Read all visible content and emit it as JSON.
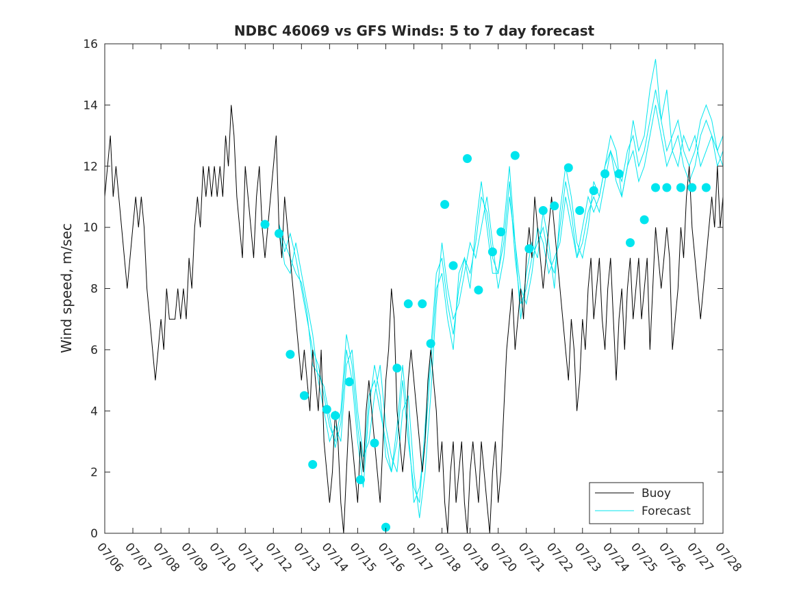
{
  "chart_data": {
    "type": "line",
    "title": "NDBC 46069 vs GFS Winds: 5 to 7 day forecast",
    "xlabel": "",
    "ylabel": "Wind speed, m/sec",
    "xlim": [
      0,
      22
    ],
    "ylim": [
      0,
      16
    ],
    "x_tick_labels": [
      "07/06",
      "07/07",
      "07/08",
      "07/09",
      "07/10",
      "07/11",
      "07/12",
      "07/13",
      "07/14",
      "07/15",
      "07/16",
      "07/17",
      "07/18",
      "07/19",
      "07/20",
      "07/21",
      "07/22",
      "07/23",
      "07/24",
      "07/25",
      "07/26",
      "07/27",
      "07/28"
    ],
    "y_ticks": [
      0,
      2,
      4,
      6,
      8,
      10,
      12,
      14,
      16
    ],
    "grid": false,
    "legend_position": "bottom-right",
    "colors": {
      "buoy": "#000000",
      "forecast": "#00e5ee",
      "axis": "#262626"
    },
    "series": [
      {
        "name": "Buoy",
        "x": [
          0,
          0.1,
          0.2,
          0.3,
          0.4,
          0.5,
          0.6,
          0.7,
          0.8,
          0.9,
          1.0,
          1.1,
          1.2,
          1.3,
          1.4,
          1.5,
          1.6,
          1.7,
          1.8,
          1.9,
          2.0,
          2.1,
          2.2,
          2.3,
          2.4,
          2.5,
          2.6,
          2.7,
          2.8,
          2.9,
          3.0,
          3.1,
          3.2,
          3.3,
          3.4,
          3.5,
          3.6,
          3.7,
          3.8,
          3.9,
          4.0,
          4.1,
          4.2,
          4.3,
          4.4,
          4.5,
          4.6,
          4.7,
          4.8,
          4.9,
          5.0,
          5.1,
          5.2,
          5.3,
          5.4,
          5.5,
          5.6,
          5.7,
          5.8,
          5.9,
          6.0,
          6.1,
          6.2,
          6.3,
          6.4,
          6.5,
          6.6,
          6.7,
          6.8,
          6.9,
          7.0,
          7.1,
          7.2,
          7.3,
          7.4,
          7.5,
          7.6,
          7.7,
          7.8,
          7.9,
          8.0,
          8.1,
          8.2,
          8.3,
          8.4,
          8.5,
          8.6,
          8.7,
          8.8,
          8.9,
          9.0,
          9.1,
          9.2,
          9.3,
          9.4,
          9.5,
          9.6,
          9.7,
          9.8,
          9.9,
          10.0,
          10.1,
          10.2,
          10.3,
          10.4,
          10.5,
          10.6,
          10.7,
          10.8,
          10.9,
          11.0,
          11.1,
          11.2,
          11.3,
          11.4,
          11.5,
          11.6,
          11.7,
          11.8,
          11.9,
          12.0,
          12.1,
          12.2,
          12.3,
          12.4,
          12.5,
          12.6,
          12.7,
          12.8,
          12.9,
          13.0,
          13.1,
          13.2,
          13.3,
          13.4,
          13.5,
          13.6,
          13.7,
          13.8,
          13.9,
          14.0,
          14.1,
          14.2,
          14.3,
          14.4,
          14.5,
          14.6,
          14.7,
          14.8,
          14.9,
          15.0,
          15.1,
          15.2,
          15.3,
          15.4,
          15.5,
          15.6,
          15.7,
          15.8,
          15.9,
          16.0,
          16.1,
          16.2,
          16.3,
          16.4,
          16.5,
          16.6,
          16.7,
          16.8,
          16.9,
          17.0,
          17.1,
          17.2,
          17.3,
          17.4,
          17.5,
          17.6,
          17.7,
          17.8,
          17.9,
          18.0,
          18.1,
          18.2,
          18.3,
          18.4,
          18.5,
          18.6,
          18.7,
          18.8,
          18.9,
          19.0,
          19.1,
          19.2,
          19.3,
          19.4,
          19.5,
          19.6,
          19.7,
          19.8,
          19.9,
          20.0,
          20.1,
          20.2,
          20.3,
          20.4,
          20.5,
          20.6,
          20.7,
          20.8,
          20.9,
          21.0,
          21.1,
          21.2,
          21.3,
          21.4,
          21.5,
          21.6,
          21.7,
          21.8,
          21.9,
          22.0
        ],
        "values": [
          11,
          12,
          13,
          11,
          12,
          11,
          10,
          9,
          8,
          9,
          10,
          11,
          10,
          11,
          10,
          8,
          7,
          6,
          5,
          6,
          7,
          6,
          8,
          7,
          7,
          7,
          8,
          7,
          8,
          7,
          9,
          8,
          10,
          11,
          10,
          12,
          11,
          12,
          11,
          12,
          11,
          12,
          11,
          13,
          12,
          14,
          13,
          11,
          10,
          9,
          12,
          11,
          10,
          9,
          11,
          12,
          10,
          9,
          10,
          11,
          12,
          13,
          10,
          9,
          11,
          10,
          9,
          8,
          7,
          6,
          5,
          6,
          5,
          4,
          6,
          5,
          4,
          6,
          3,
          2,
          1,
          2,
          4,
          3,
          1,
          0,
          2,
          4,
          3,
          2,
          1,
          3,
          2,
          4,
          5,
          4,
          3,
          2,
          1,
          3,
          5,
          6,
          8,
          7,
          4,
          3,
          2,
          3,
          5,
          6,
          5,
          4,
          3,
          2,
          3,
          5,
          6,
          5,
          4,
          2,
          3,
          1,
          0,
          2,
          3,
          1,
          2,
          3,
          1,
          0,
          2,
          3,
          2,
          1,
          3,
          2,
          1,
          0,
          2,
          3,
          1,
          2,
          4,
          6,
          7,
          8,
          6,
          7,
          8,
          7,
          9,
          10,
          9,
          11,
          10,
          9,
          8,
          9,
          10,
          11,
          10,
          9,
          8,
          7,
          6,
          5,
          7,
          6,
          4,
          5,
          7,
          6,
          8,
          9,
          7,
          8,
          9,
          7,
          6,
          8,
          9,
          7,
          5,
          7,
          8,
          6,
          8,
          9,
          7,
          8,
          9,
          7,
          8,
          9,
          6,
          8,
          10,
          9,
          8,
          9,
          10,
          9,
          6,
          7,
          8,
          10,
          9,
          11,
          12,
          10,
          9,
          8,
          7,
          8,
          9,
          10,
          11,
          10,
          12,
          10,
          11
        ]
      },
      {
        "name": "Forecast",
        "x": [
          6.2,
          6.4,
          6.6,
          6.8,
          7.0,
          7.2,
          7.4,
          7.6,
          7.8,
          8.0,
          8.2,
          8.4,
          8.6,
          8.8,
          9.0,
          9.2,
          9.4,
          9.6,
          9.8,
          10.0,
          10.2,
          10.4,
          10.6,
          10.8,
          11.0,
          11.2,
          11.4,
          11.6,
          11.8,
          12.0,
          12.2,
          12.4,
          12.6,
          12.8,
          13.0,
          13.2,
          13.4,
          13.6,
          13.8,
          14.0,
          14.2,
          14.4,
          14.6,
          14.8,
          15.0,
          15.2,
          15.4,
          15.6,
          15.8,
          16.0,
          16.2,
          16.4,
          16.6,
          16.8,
          17.0,
          17.2,
          17.4,
          17.6,
          17.8,
          18.0,
          18.2,
          18.4,
          18.6,
          18.8,
          19.0,
          19.2,
          19.4,
          19.6,
          19.8,
          20.0,
          20.2,
          20.4,
          20.6,
          20.8,
          21.0,
          21.2,
          21.4,
          21.6,
          21.8,
          22.0
        ],
        "values": [
          10.1,
          9.2,
          9.8,
          9.0,
          8.0,
          7.0,
          6.0,
          5.5,
          4.5,
          3.5,
          3.0,
          4.0,
          6.5,
          5.5,
          3.5,
          2.0,
          4.5,
          5.0,
          4.0,
          3.0,
          2.0,
          3.0,
          5.0,
          3.0,
          1.5,
          1.0,
          3.5,
          6.0,
          8.5,
          9.0,
          7.5,
          6.5,
          8.0,
          9.0,
          8.5,
          9.5,
          11.0,
          10.5,
          9.0,
          8.5,
          9.5,
          11.5,
          9.0,
          7.5,
          8.0,
          9.0,
          9.5,
          10.0,
          9.0,
          8.5,
          10.0,
          11.5,
          10.5,
          9.0,
          9.5,
          10.5,
          11.0,
          10.5,
          11.5,
          12.5,
          12.0,
          11.5,
          12.5,
          13.0,
          12.0,
          12.5,
          13.5,
          14.5,
          13.5,
          12.5,
          13.0,
          13.5,
          12.5,
          12.0,
          12.5,
          13.5,
          14.0,
          13.5,
          12.5,
          13.0
        ]
      },
      {
        "name": "",
        "x": [
          6.2,
          6.4,
          6.6,
          6.8,
          7.0,
          7.2,
          7.4,
          7.6,
          7.8,
          8.0,
          8.2,
          8.4,
          8.6,
          8.8,
          9.0,
          9.2,
          9.4,
          9.6,
          9.8,
          10.0,
          10.2,
          10.4,
          10.6,
          10.8,
          11.0,
          11.2,
          11.4,
          11.6,
          11.8,
          12.0,
          12.2,
          12.4,
          12.6,
          12.8,
          13.0,
          13.2,
          13.4,
          13.6,
          13.8,
          14.0,
          14.2,
          14.4,
          14.6,
          14.8,
          15.0,
          15.2,
          15.4,
          15.6,
          15.8,
          16.0,
          16.2,
          16.4,
          16.6,
          16.8,
          17.0,
          17.2,
          17.4,
          17.6,
          17.8,
          18.0,
          18.2,
          18.4,
          18.6,
          18.8,
          19.0,
          19.2,
          19.4,
          19.6,
          19.8,
          20.0,
          20.2,
          20.4,
          20.6,
          20.8,
          21.0,
          21.2,
          21.4,
          21.6,
          21.8,
          22.0
        ],
        "values": [
          10.0,
          8.8,
          8.5,
          9.5,
          8.5,
          7.5,
          6.5,
          5.0,
          4.0,
          3.0,
          3.5,
          3.0,
          5.5,
          6.0,
          4.0,
          2.5,
          3.0,
          4.5,
          5.5,
          3.5,
          2.5,
          2.0,
          4.0,
          4.5,
          2.0,
          0.5,
          2.0,
          4.5,
          7.5,
          9.5,
          8.0,
          7.0,
          7.5,
          8.5,
          9.5,
          9.0,
          10.0,
          11.0,
          9.5,
          8.0,
          9.0,
          11.0,
          9.5,
          8.0,
          7.5,
          8.5,
          10.0,
          9.5,
          8.5,
          9.0,
          9.5,
          11.0,
          10.0,
          9.0,
          10.0,
          11.0,
          10.5,
          11.0,
          12.0,
          12.5,
          11.5,
          11.0,
          12.0,
          12.5,
          11.5,
          12.0,
          13.0,
          14.0,
          13.0,
          12.0,
          12.5,
          13.0,
          12.0,
          11.5,
          12.0,
          13.0,
          13.5,
          13.0,
          12.0,
          12.5
        ]
      },
      {
        "name": "",
        "x": [
          6.2,
          6.4,
          6.6,
          6.8,
          7.0,
          7.2,
          7.4,
          7.6,
          7.8,
          8.0,
          8.2,
          8.4,
          8.6,
          8.8,
          9.0,
          9.2,
          9.4,
          9.6,
          9.8,
          10.0,
          10.2,
          10.4,
          10.6,
          10.8,
          11.0,
          11.2,
          11.4,
          11.6,
          11.8,
          12.0,
          12.2,
          12.4,
          12.6,
          12.8,
          13.0,
          13.2,
          13.4,
          13.6,
          13.8,
          14.0,
          14.2,
          14.4,
          14.6,
          14.8,
          15.0,
          15.2,
          15.4,
          15.6,
          15.8,
          16.0,
          16.2,
          16.4,
          16.6,
          16.8,
          17.0,
          17.2,
          17.4,
          17.6,
          17.8,
          18.0,
          18.2,
          18.4,
          18.6,
          18.8,
          19.0,
          19.2,
          19.4,
          19.6,
          19.8,
          20.0,
          20.2,
          20.4,
          20.6,
          20.8,
          21.0,
          21.2,
          21.4,
          21.6,
          21.8,
          22.0
        ],
        "values": [
          10.1,
          9.5,
          9.0,
          8.5,
          8.2,
          7.2,
          5.5,
          5.2,
          4.8,
          3.8,
          2.8,
          3.6,
          6.0,
          5.0,
          3.0,
          1.5,
          4.0,
          5.5,
          4.5,
          2.5,
          2.0,
          3.5,
          5.5,
          3.5,
          1.0,
          1.5,
          3.0,
          5.5,
          8.0,
          8.5,
          7.0,
          6.0,
          8.5,
          9.0,
          8.0,
          10.0,
          11.5,
          10.0,
          8.5,
          8.5,
          10.0,
          12.0,
          9.5,
          7.0,
          8.5,
          9.5,
          9.0,
          10.5,
          9.5,
          8.0,
          10.5,
          12.0,
          11.0,
          9.5,
          9.0,
          10.0,
          11.5,
          11.0,
          12.0,
          13.0,
          12.5,
          11.0,
          12.0,
          13.5,
          12.5,
          13.0,
          14.5,
          15.5,
          13.5,
          14.5,
          12.5,
          12.0,
          13.0,
          12.5,
          13.0,
          12.0,
          12.5,
          13.0,
          12.5,
          12.0
        ]
      }
    ],
    "markers": {
      "series": "Forecast",
      "x": [
        5.7,
        6.2,
        6.6,
        7.1,
        7.4,
        7.9,
        8.2,
        8.7,
        9.1,
        9.6,
        10.0,
        10.4,
        10.8,
        11.3,
        11.6,
        12.1,
        12.4,
        12.9,
        13.3,
        13.8,
        14.1,
        14.6,
        15.1,
        15.6,
        16.0,
        16.5,
        16.9,
        17.4,
        17.8,
        18.3,
        18.7,
        19.2,
        19.6,
        20.0,
        20.5,
        20.9,
        21.4
      ],
      "values": [
        10.1,
        9.8,
        5.85,
        4.5,
        2.25,
        4.05,
        3.85,
        4.95,
        1.75,
        2.95,
        0.2,
        5.4,
        7.5,
        7.5,
        6.2,
        10.75,
        8.75,
        12.25,
        7.95,
        9.2,
        9.85,
        12.35,
        9.3,
        10.55,
        10.7,
        11.95,
        10.55,
        11.2,
        11.75,
        11.75,
        9.5,
        10.25,
        11.3,
        11.3,
        11.3,
        11.3,
        11.3
      ]
    }
  }
}
